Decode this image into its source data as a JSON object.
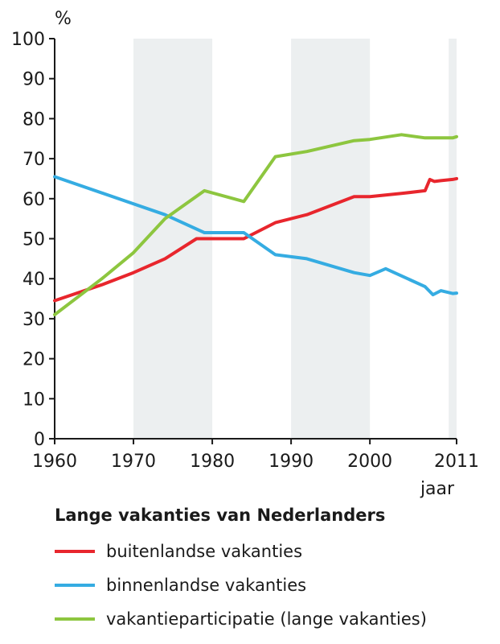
{
  "chart_data": {
    "type": "line",
    "ylabel": "%",
    "xlabel": "jaar",
    "ylim": [
      0,
      100
    ],
    "xlim": [
      1960,
      2011
    ],
    "yticks": [
      "0",
      "10",
      "20",
      "30",
      "40",
      "50",
      "60",
      "70",
      "80",
      "90",
      "100"
    ],
    "xticks": [
      "1960",
      "1970",
      "1980",
      "1990",
      "2000",
      "2011"
    ],
    "shaded_decades": [
      [
        1970,
        1980
      ],
      [
        1990,
        2000
      ],
      [
        2010,
        2011
      ]
    ],
    "grid": false,
    "legend_title": "Lange vakanties van Nederlanders",
    "series": [
      {
        "name": "buitenlandse vakanties",
        "color": "#e8262d",
        "x": [
          1960,
          1966,
          1970,
          1974,
          1978,
          1980,
          1984,
          1988,
          1992,
          1998,
          2000,
          2004,
          2007,
          2007.6,
          2008.2,
          2009,
          2010.5,
          2011
        ],
        "y": [
          34.5,
          38.5,
          41.5,
          45,
          50,
          50,
          50,
          54,
          56,
          60.5,
          60.5,
          61.3,
          62,
          64.8,
          64.3,
          64.5,
          64.8,
          65
        ]
      },
      {
        "name": "binnenlandse vakanties",
        "color": "#35ace2",
        "x": [
          1960,
          1974,
          1979,
          1984,
          1988,
          1992,
          1998,
          2000,
          2002,
          2007,
          2008,
          2009,
          2010.5,
          2011
        ],
        "y": [
          65.5,
          56,
          51.5,
          51.5,
          46,
          45,
          41.5,
          40.8,
          42.5,
          38,
          36,
          37,
          36.3,
          36.4
        ]
      },
      {
        "name": "vakantieparticipatie (lange vakanties)",
        "color": "#8dc63f",
        "x": [
          1960,
          1966,
          1970,
          1974,
          1979,
          1984,
          1988,
          1992,
          1998,
          2000,
          2004,
          2007,
          2010.5,
          2011
        ],
        "y": [
          31,
          40,
          46.5,
          55,
          62,
          59.3,
          70.5,
          71.8,
          74.5,
          74.8,
          76,
          75.2,
          75.2,
          75.5
        ]
      }
    ]
  }
}
